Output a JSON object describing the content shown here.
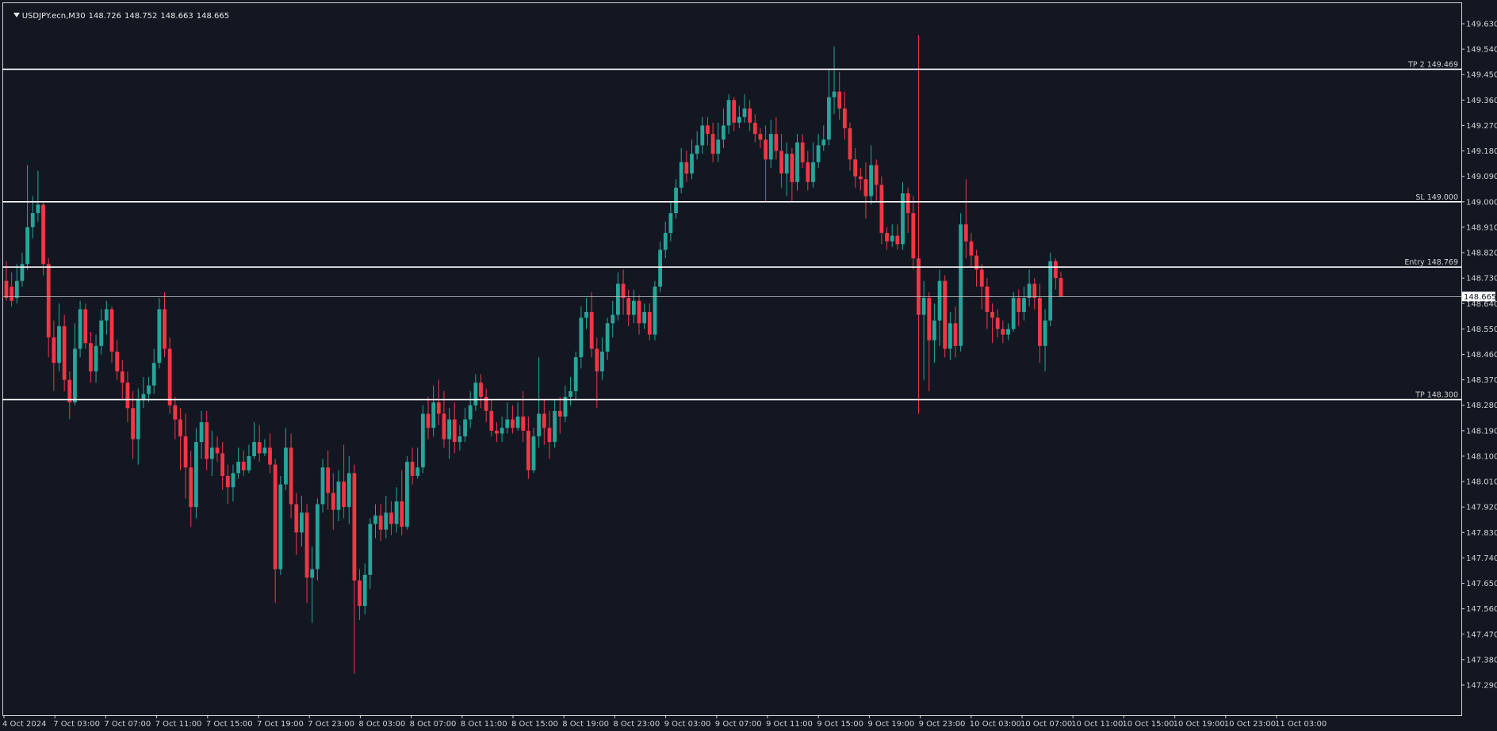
{
  "header": {
    "symbol": "USDJPY.ecn,M30",
    "open": "148.726",
    "high": "148.752",
    "low": "148.663",
    "close": "148.665"
  },
  "colors": {
    "background": "#131722",
    "bull": "#26a69a",
    "bear": "#f23645",
    "axis_text": "#d0d0d0",
    "level_line": "#ffffff",
    "price_line": "#c0c0c0"
  },
  "chart_data": {
    "type": "candlestick",
    "y_ticks": [
      "149.630",
      "149.540",
      "149.450",
      "149.360",
      "149.270",
      "149.180",
      "149.090",
      "149.000",
      "148.910",
      "148.820",
      "148.730",
      "148.640",
      "148.550",
      "148.460",
      "148.370",
      "148.280",
      "148.190",
      "148.100",
      "148.010",
      "147.920",
      "147.830",
      "147.740",
      "147.650",
      "147.560",
      "147.470",
      "147.380",
      "147.290"
    ],
    "ylim": [
      147.27,
      149.69
    ],
    "x_ticks": [
      "4 Oct 2024",
      "7 Oct 03:00",
      "7 Oct 07:00",
      "7 Oct 11:00",
      "7 Oct 15:00",
      "7 Oct 19:00",
      "7 Oct 23:00",
      "8 Oct 03:00",
      "8 Oct 07:00",
      "8 Oct 11:00",
      "8 Oct 15:00",
      "8 Oct 19:00",
      "8 Oct 23:00",
      "9 Oct 03:00",
      "9 Oct 07:00",
      "9 Oct 11:00",
      "9 Oct 15:00",
      "9 Oct 19:00",
      "9 Oct 23:00",
      "10 Oct 03:00",
      "10 Oct 07:00",
      "10 Oct 11:00",
      "10 Oct 15:00",
      "10 Oct 19:00",
      "10 Oct 23:00",
      "11 Oct 03:00"
    ],
    "levels": [
      {
        "label": "TP 2 149.469",
        "price": 149.469
      },
      {
        "label": "SL 149.000",
        "price": 149.0
      },
      {
        "label": "Entry 148.769",
        "price": 148.769
      },
      {
        "label": "TP 148.300",
        "price": 148.3
      }
    ],
    "current_price": {
      "label": "148.665",
      "price": 148.665
    },
    "candles": [
      [
        148.72,
        148.66,
        148.79,
        148.65
      ],
      [
        148.7,
        148.65,
        148.75,
        148.63
      ],
      [
        148.66,
        148.72,
        148.78,
        148.64
      ],
      [
        148.72,
        148.78,
        148.82,
        148.7
      ],
      [
        148.78,
        148.91,
        149.13,
        148.76
      ],
      [
        148.91,
        148.96,
        149.02,
        148.87
      ],
      [
        148.96,
        148.99,
        149.11,
        148.93
      ],
      [
        148.99,
        148.78,
        149.0,
        148.74
      ],
      [
        148.78,
        148.52,
        148.8,
        148.45
      ],
      [
        148.52,
        148.43,
        148.58,
        148.33
      ],
      [
        148.43,
        148.56,
        148.64,
        148.4
      ],
      [
        148.56,
        148.37,
        148.6,
        148.33
      ],
      [
        148.37,
        148.29,
        148.4,
        148.23
      ],
      [
        148.29,
        148.48,
        148.57,
        148.28
      ],
      [
        148.48,
        148.62,
        148.65,
        148.45
      ],
      [
        148.62,
        148.5,
        148.64,
        148.48
      ],
      [
        148.5,
        148.4,
        148.54,
        148.36
      ],
      [
        148.4,
        148.49,
        148.53,
        148.36
      ],
      [
        148.49,
        148.58,
        148.62,
        148.46
      ],
      [
        148.58,
        148.62,
        148.65,
        148.53
      ],
      [
        148.62,
        148.47,
        148.63,
        148.43
      ],
      [
        148.47,
        148.4,
        148.51,
        148.37
      ],
      [
        148.4,
        148.36,
        148.44,
        148.3
      ],
      [
        148.36,
        148.27,
        148.4,
        148.22
      ],
      [
        148.27,
        148.16,
        148.33,
        148.09
      ],
      [
        148.16,
        148.3,
        148.34,
        148.07
      ],
      [
        148.3,
        148.32,
        148.38,
        148.27
      ],
      [
        148.32,
        148.35,
        148.38,
        148.29
      ],
      [
        148.35,
        148.43,
        148.48,
        148.32
      ],
      [
        148.43,
        148.62,
        148.66,
        148.41
      ],
      [
        148.62,
        148.48,
        148.68,
        148.45
      ],
      [
        148.48,
        148.28,
        148.52,
        148.25
      ],
      [
        148.28,
        148.23,
        148.31,
        148.16
      ],
      [
        148.23,
        148.17,
        148.27,
        148.05
      ],
      [
        148.17,
        148.06,
        148.25,
        147.95
      ],
      [
        148.06,
        147.92,
        148.12,
        147.85
      ],
      [
        147.92,
        148.15,
        148.2,
        147.88
      ],
      [
        148.15,
        148.22,
        148.26,
        148.09
      ],
      [
        148.22,
        148.09,
        148.26,
        148.05
      ],
      [
        148.09,
        148.13,
        148.19,
        148.03
      ],
      [
        148.13,
        148.11,
        148.17,
        148.08
      ],
      [
        148.11,
        148.03,
        148.15,
        147.98
      ],
      [
        148.03,
        147.99,
        148.07,
        147.93
      ],
      [
        147.99,
        148.04,
        148.07,
        147.94
      ],
      [
        148.04,
        148.08,
        148.13,
        148.02
      ],
      [
        148.08,
        148.05,
        148.12,
        148.03
      ],
      [
        148.05,
        148.1,
        148.14,
        148.04
      ],
      [
        148.1,
        148.15,
        148.22,
        148.09
      ],
      [
        148.15,
        148.11,
        148.21,
        148.08
      ],
      [
        148.11,
        148.13,
        148.16,
        148.1
      ],
      [
        148.13,
        148.07,
        148.18,
        148.04
      ],
      [
        148.07,
        147.7,
        148.09,
        147.58
      ],
      [
        147.7,
        148.0,
        148.03,
        147.68
      ],
      [
        148.0,
        148.13,
        148.2,
        147.98
      ],
      [
        148.13,
        147.93,
        148.18,
        147.88
      ],
      [
        147.93,
        147.83,
        147.97,
        147.75
      ],
      [
        147.83,
        147.9,
        147.96,
        147.78
      ],
      [
        147.9,
        147.67,
        147.93,
        147.58
      ],
      [
        147.67,
        147.7,
        147.78,
        147.51
      ],
      [
        147.7,
        147.93,
        147.95,
        147.66
      ],
      [
        147.93,
        148.06,
        148.09,
        147.9
      ],
      [
        148.06,
        147.97,
        148.12,
        147.91
      ],
      [
        147.97,
        147.91,
        148.04,
        147.84
      ],
      [
        147.91,
        148.01,
        148.05,
        147.87
      ],
      [
        148.01,
        147.92,
        148.14,
        147.88
      ],
      [
        147.92,
        148.04,
        148.1,
        147.86
      ],
      [
        148.04,
        147.66,
        148.07,
        147.33
      ],
      [
        147.66,
        147.57,
        147.7,
        147.52
      ],
      [
        147.57,
        147.68,
        147.72,
        147.54
      ],
      [
        147.68,
        147.86,
        147.88,
        147.63
      ],
      [
        147.86,
        147.89,
        147.93,
        147.81
      ],
      [
        147.89,
        147.84,
        147.93,
        147.8
      ],
      [
        147.84,
        147.9,
        147.96,
        147.81
      ],
      [
        147.9,
        147.86,
        147.94,
        147.82
      ],
      [
        147.86,
        147.94,
        147.99,
        147.83
      ],
      [
        147.94,
        147.85,
        148.05,
        147.82
      ],
      [
        147.85,
        148.08,
        148.1,
        147.84
      ],
      [
        148.08,
        148.03,
        148.13,
        148.0
      ],
      [
        148.03,
        148.06,
        148.13,
        148.02
      ],
      [
        148.06,
        148.25,
        148.28,
        148.04
      ],
      [
        148.25,
        148.2,
        148.31,
        148.16
      ],
      [
        148.2,
        148.29,
        148.35,
        148.17
      ],
      [
        148.29,
        148.25,
        148.37,
        148.21
      ],
      [
        148.25,
        148.16,
        148.33,
        148.13
      ],
      [
        148.16,
        148.23,
        148.27,
        148.09
      ],
      [
        148.23,
        148.15,
        148.29,
        148.11
      ],
      [
        148.15,
        148.17,
        148.21,
        148.12
      ],
      [
        148.17,
        148.23,
        148.27,
        148.15
      ],
      [
        148.23,
        148.28,
        148.33,
        148.2
      ],
      [
        148.28,
        148.36,
        148.39,
        148.26
      ],
      [
        148.36,
        148.31,
        148.39,
        148.27
      ],
      [
        148.31,
        148.26,
        148.34,
        148.22
      ],
      [
        148.26,
        148.19,
        148.3,
        148.17
      ],
      [
        148.19,
        148.18,
        148.22,
        148.15
      ],
      [
        148.18,
        148.2,
        148.24,
        148.15
      ],
      [
        148.2,
        148.23,
        148.29,
        148.18
      ],
      [
        148.23,
        148.2,
        148.28,
        148.18
      ],
      [
        148.2,
        148.24,
        148.29,
        148.19
      ],
      [
        148.24,
        148.19,
        148.33,
        148.15
      ],
      [
        148.19,
        148.05,
        148.24,
        148.02
      ],
      [
        148.05,
        148.17,
        148.2,
        148.04
      ],
      [
        148.17,
        148.25,
        148.45,
        148.13
      ],
      [
        148.25,
        148.2,
        148.3,
        148.14
      ],
      [
        148.2,
        148.15,
        148.26,
        148.09
      ],
      [
        148.15,
        148.26,
        148.3,
        148.13
      ],
      [
        148.26,
        148.24,
        148.31,
        148.18
      ],
      [
        148.24,
        148.31,
        148.35,
        148.22
      ],
      [
        148.31,
        148.33,
        148.38,
        148.28
      ],
      [
        148.33,
        148.45,
        148.47,
        148.3
      ],
      [
        148.45,
        148.59,
        148.63,
        148.41
      ],
      [
        148.59,
        148.61,
        148.66,
        148.55
      ],
      [
        148.61,
        148.48,
        148.68,
        148.45
      ],
      [
        148.48,
        148.4,
        148.52,
        148.27
      ],
      [
        148.4,
        148.47,
        148.52,
        148.37
      ],
      [
        148.47,
        148.57,
        148.59,
        148.44
      ],
      [
        148.57,
        148.6,
        148.65,
        148.52
      ],
      [
        148.6,
        148.71,
        148.75,
        148.58
      ],
      [
        148.71,
        148.66,
        148.76,
        148.6
      ],
      [
        148.66,
        148.6,
        148.69,
        148.56
      ],
      [
        148.6,
        148.65,
        148.69,
        148.57
      ],
      [
        148.65,
        148.57,
        148.67,
        148.53
      ],
      [
        148.57,
        148.61,
        148.64,
        148.55
      ],
      [
        148.61,
        148.53,
        148.64,
        148.51
      ],
      [
        148.53,
        148.7,
        148.72,
        148.51
      ],
      [
        148.7,
        148.83,
        148.86,
        148.68
      ],
      [
        148.83,
        148.89,
        148.93,
        148.8
      ],
      [
        148.89,
        148.96,
        149.0,
        148.86
      ],
      [
        148.96,
        149.05,
        149.08,
        148.94
      ],
      [
        149.05,
        149.14,
        149.19,
        149.03
      ],
      [
        149.14,
        149.1,
        149.18,
        149.07
      ],
      [
        149.1,
        149.17,
        149.22,
        149.08
      ],
      [
        149.17,
        149.2,
        149.25,
        149.15
      ],
      [
        149.2,
        149.27,
        149.3,
        149.17
      ],
      [
        149.27,
        149.24,
        149.3,
        149.2
      ],
      [
        149.24,
        149.17,
        149.28,
        149.14
      ],
      [
        149.17,
        149.22,
        149.28,
        149.14
      ],
      [
        149.22,
        149.27,
        149.33,
        149.19
      ],
      [
        149.27,
        149.36,
        149.38,
        149.24
      ],
      [
        149.36,
        149.28,
        149.37,
        149.25
      ],
      [
        149.28,
        149.3,
        149.34,
        149.26
      ],
      [
        149.3,
        149.33,
        149.38,
        149.28
      ],
      [
        149.33,
        149.28,
        149.36,
        149.25
      ],
      [
        149.28,
        149.24,
        149.31,
        149.21
      ],
      [
        149.24,
        149.22,
        149.26,
        149.19
      ],
      [
        149.22,
        149.15,
        149.27,
        149.0
      ],
      [
        149.15,
        149.24,
        149.29,
        149.12
      ],
      [
        149.24,
        149.18,
        149.3,
        149.15
      ],
      [
        149.18,
        149.1,
        149.24,
        149.05
      ],
      [
        149.1,
        149.17,
        149.21,
        149.02
      ],
      [
        149.17,
        149.07,
        149.19,
        149.0
      ],
      [
        149.07,
        149.21,
        149.24,
        149.04
      ],
      [
        149.21,
        149.14,
        149.24,
        149.12
      ],
      [
        149.14,
        149.07,
        149.18,
        149.04
      ],
      [
        149.07,
        149.14,
        149.21,
        149.05
      ],
      [
        149.14,
        149.2,
        149.24,
        149.12
      ],
      [
        149.2,
        149.22,
        149.27,
        149.18
      ],
      [
        149.22,
        149.37,
        149.47,
        149.2
      ],
      [
        149.37,
        149.39,
        149.55,
        149.31
      ],
      [
        149.39,
        149.33,
        149.46,
        149.29
      ],
      [
        149.33,
        149.26,
        149.39,
        149.22
      ],
      [
        149.26,
        149.15,
        149.28,
        149.11
      ],
      [
        149.15,
        149.09,
        149.19,
        149.05
      ],
      [
        149.09,
        149.08,
        149.12,
        149.04
      ],
      [
        149.08,
        149.02,
        149.14,
        148.94
      ],
      [
        149.02,
        149.13,
        149.2,
        148.99
      ],
      [
        149.13,
        149.06,
        149.15,
        149.0
      ],
      [
        149.06,
        148.89,
        149.09,
        148.85
      ],
      [
        148.89,
        148.86,
        148.91,
        148.83
      ],
      [
        148.86,
        148.88,
        148.92,
        148.84
      ],
      [
        148.88,
        148.85,
        148.92,
        148.83
      ],
      [
        148.85,
        149.03,
        149.07,
        148.83
      ],
      [
        149.03,
        148.96,
        149.05,
        148.89
      ],
      [
        148.96,
        148.8,
        149.02,
        148.76
      ],
      [
        148.8,
        148.6,
        149.59,
        148.25
      ],
      [
        148.6,
        148.66,
        148.72,
        148.37
      ],
      [
        148.66,
        148.51,
        148.68,
        148.33
      ],
      [
        148.51,
        148.58,
        148.64,
        148.43
      ],
      [
        148.58,
        148.72,
        148.76,
        148.49
      ],
      [
        148.72,
        148.48,
        148.74,
        148.45
      ],
      [
        148.48,
        148.57,
        148.61,
        148.44
      ],
      [
        148.57,
        148.49,
        148.63,
        148.45
      ],
      [
        148.49,
        148.92,
        148.96,
        148.47
      ],
      [
        148.92,
        148.86,
        149.08,
        148.8
      ],
      [
        148.86,
        148.81,
        148.89,
        148.77
      ],
      [
        148.81,
        148.76,
        148.83,
        148.7
      ],
      [
        148.76,
        148.7,
        148.78,
        148.62
      ],
      [
        148.7,
        148.61,
        148.73,
        148.55
      ],
      [
        148.61,
        148.59,
        148.64,
        148.5
      ],
      [
        148.59,
        148.55,
        148.62,
        148.52
      ],
      [
        148.55,
        148.53,
        148.58,
        148.5
      ],
      [
        148.53,
        148.55,
        148.57,
        148.51
      ],
      [
        148.55,
        148.66,
        148.68,
        148.54
      ],
      [
        148.66,
        148.61,
        148.69,
        148.56
      ],
      [
        148.61,
        148.66,
        148.7,
        148.58
      ],
      [
        148.66,
        148.71,
        148.76,
        148.63
      ],
      [
        148.71,
        148.66,
        148.73,
        148.62
      ],
      [
        148.66,
        148.49,
        148.71,
        148.43
      ],
      [
        148.49,
        148.58,
        148.62,
        148.4
      ],
      [
        148.58,
        148.79,
        148.82,
        148.56
      ],
      [
        148.79,
        148.73,
        148.8,
        148.69
      ],
      [
        148.73,
        148.665,
        148.752,
        148.663
      ]
    ]
  }
}
